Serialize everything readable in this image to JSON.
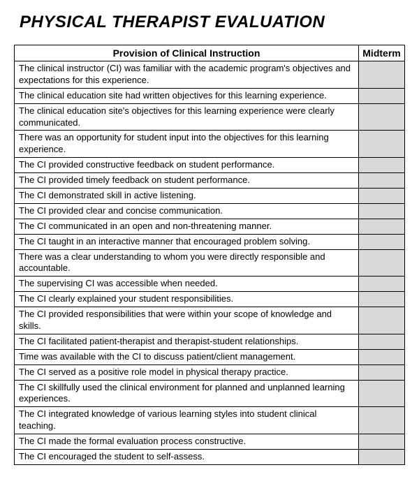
{
  "title": "PHYSICAL THERAPIST EVALUATION",
  "table": {
    "header_left": "Provision of Clinical Instruction",
    "header_right": "Midterm",
    "midterm_bg": "#d9d9d9",
    "border_color": "#000000",
    "rows": [
      "The clinical instructor (CI) was familiar with the academic program's objectives and expectations for this experience.",
      "The clinical education site had written objectives for this learning experience.",
      "The clinical education site's objectives for this learning experience were clearly communicated.",
      "There was an opportunity for student input into the objectives for this learning experience.",
      "The CI provided constructive feedback on student performance.",
      "The CI provided timely feedback on student performance.",
      "The CI demonstrated skill in active listening.",
      "The CI provided clear and concise communication.",
      "The CI communicated in an open and non-threatening manner.",
      "The CI taught in an interactive manner that encouraged problem solving.",
      "There was a clear understanding to whom you were directly responsible and accountable.",
      "The supervising CI was accessible when needed.",
      "The CI clearly explained your student responsibilities.",
      "The CI provided responsibilities that were within your scope of knowledge and skills.",
      "The CI facilitated patient-therapist and therapist-student relationships.",
      "Time was available with the CI to discuss patient/client management.",
      "The CI served as a positive role model in physical therapy practice.",
      "The CI skillfully used the clinical environment for planned and unplanned learning experiences.",
      "The CI integrated knowledge of various learning styles into student clinical teaching.",
      "The CI made the formal evaluation process constructive.",
      "The CI encouraged the student to self-assess."
    ]
  }
}
